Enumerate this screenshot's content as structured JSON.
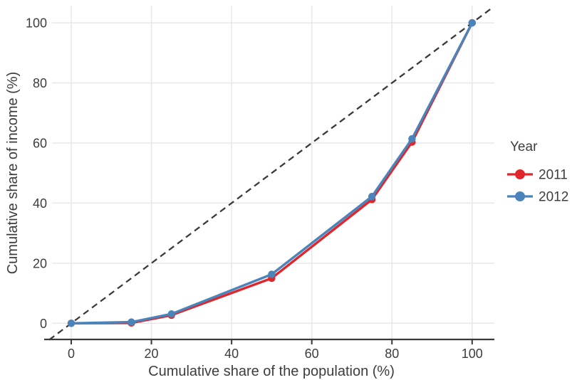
{
  "chart_data": {
    "type": "line",
    "title": "",
    "xlabel": "Cumulative share of the population (%)",
    "ylabel": "Cumulative share of income (%)",
    "x_ticks": [
      0,
      20,
      40,
      60,
      80,
      100
    ],
    "y_ticks": [
      0,
      20,
      40,
      60,
      80,
      100
    ],
    "xlim": [
      -6,
      106
    ],
    "ylim": [
      -6,
      106
    ],
    "grid": "on",
    "x": [
      0,
      15,
      25,
      50,
      75,
      85,
      100
    ],
    "series": [
      {
        "name": "2011",
        "color": "#e0252b",
        "values": [
          0,
          0.1,
          2.7,
          15.0,
          41.2,
          60.3,
          100
        ]
      },
      {
        "name": "2012",
        "color": "#4b84ba",
        "values": [
          0,
          0.4,
          3.1,
          16.3,
          42.2,
          61.4,
          100
        ]
      }
    ],
    "equality_line": {
      "name": "line-of-equality",
      "style": "dashed",
      "color": "#3a3a3a",
      "from": [
        -5.5,
        -5.5
      ],
      "to": [
        105,
        105
      ]
    },
    "legend": {
      "title": "Year",
      "position": "right",
      "items": [
        {
          "label": "2011",
          "color": "#e0252b"
        },
        {
          "label": "2012",
          "color": "#4b84ba"
        }
      ]
    }
  },
  "style_colors": {
    "grid": "#e8e8e8",
    "axis_line": "#3a3a3a",
    "text": "#3d3d3d",
    "background": "#ffffff"
  }
}
